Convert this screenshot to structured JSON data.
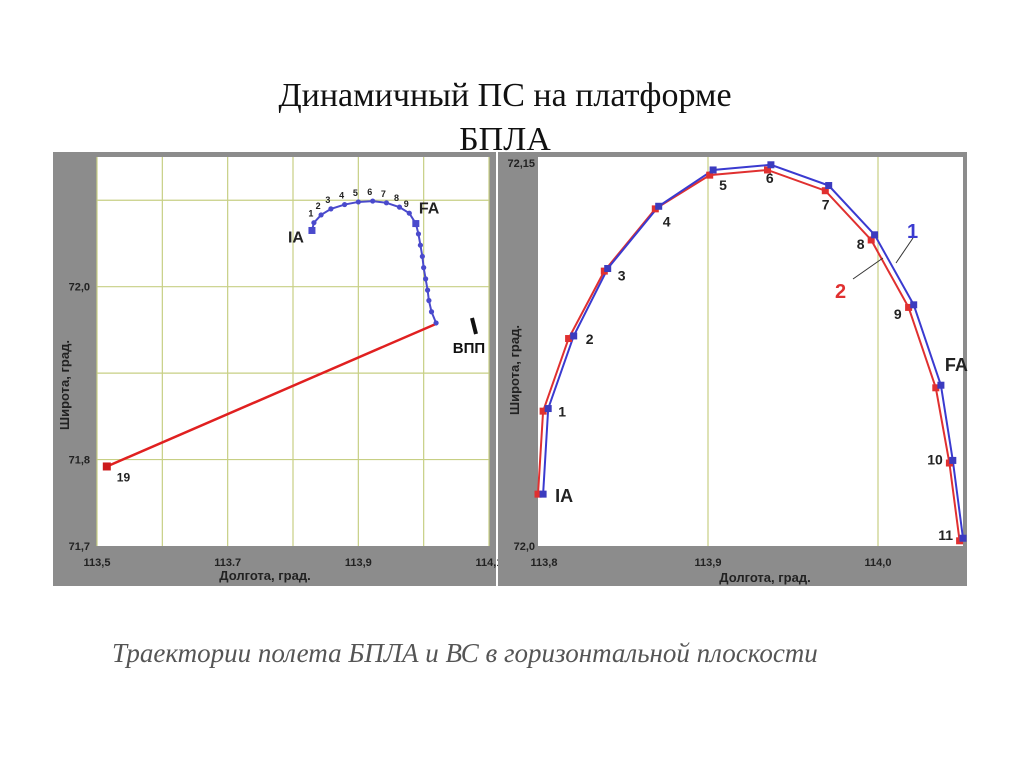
{
  "title": {
    "line1": "Динамичный ПС на платформе",
    "line2": "БПЛА"
  },
  "caption": "Траектории полета БПЛА и ВС в горизонтальной плоскости",
  "colors": {
    "frame": "#8c8c8c",
    "plot_bg": "#ffffff",
    "grid": "#c7cf84",
    "uav": "#4a4acc",
    "aircraft_line": "#e02020",
    "aircraft_marker": "#cc1a1a",
    "track1": "#3a3ad0",
    "track2": "#e03030",
    "marker_blue": "#3b3bbf",
    "runway": "#111111"
  },
  "chart_data": [
    {
      "type": "line",
      "xlabel": "Долгота, град.",
      "ylabel": "Широта, град.",
      "xlim": [
        113.5,
        114.1
      ],
      "ylim": [
        71.7,
        72.15
      ],
      "x_ticks": [
        {
          "value": 113.5,
          "label": "113,5"
        },
        {
          "value": 113.7,
          "label": "113.7"
        },
        {
          "value": 113.9,
          "label": "113,9"
        },
        {
          "value": 114.1,
          "label": "114,1"
        }
      ],
      "y_ticks": [
        {
          "value": 71.7,
          "label": "71,7"
        },
        {
          "value": 71.8,
          "label": "71,8"
        },
        {
          "value": 72.0,
          "label": "72,0"
        }
      ],
      "grid_x": [
        113.5,
        113.6,
        113.7,
        113.8,
        113.9,
        114.0,
        114.1
      ],
      "grid_y": [
        71.8,
        71.9,
        72.0,
        72.1
      ],
      "grid": true,
      "uav_track": {
        "points": [
          {
            "x": 113.829,
            "y": 72.065,
            "label": "IA"
          },
          {
            "x": 113.832,
            "y": 72.074,
            "label": "1"
          },
          {
            "x": 113.843,
            "y": 72.083,
            "label": "2"
          },
          {
            "x": 113.858,
            "y": 72.09,
            "label": "3"
          },
          {
            "x": 113.879,
            "y": 72.095,
            "label": "4"
          },
          {
            "x": 113.9,
            "y": 72.098,
            "label": "5"
          },
          {
            "x": 113.922,
            "y": 72.099,
            "label": "6"
          },
          {
            "x": 113.943,
            "y": 72.097,
            "label": "7"
          },
          {
            "x": 113.963,
            "y": 72.092,
            "label": "8"
          },
          {
            "x": 113.978,
            "y": 72.085,
            "label": "9"
          },
          {
            "x": 113.988,
            "y": 72.073,
            "label": "FA"
          },
          {
            "x": 113.992,
            "y": 72.061,
            "label": ""
          },
          {
            "x": 113.995,
            "y": 72.048,
            "label": ""
          },
          {
            "x": 113.998,
            "y": 72.035,
            "label": ""
          },
          {
            "x": 114.0,
            "y": 72.022,
            "label": ""
          },
          {
            "x": 114.003,
            "y": 72.009,
            "label": ""
          },
          {
            "x": 114.006,
            "y": 71.996,
            "label": ""
          },
          {
            "x": 114.008,
            "y": 71.984,
            "label": ""
          },
          {
            "x": 114.012,
            "y": 71.971,
            "label": ""
          },
          {
            "x": 114.019,
            "y": 71.958,
            "label": ""
          }
        ]
      },
      "aircraft_track": {
        "points": [
          {
            "x": 114.019,
            "y": 71.957,
            "label": ""
          },
          {
            "x": 113.515,
            "y": 71.792,
            "label": "19"
          }
        ]
      },
      "runway_label": "ВПП"
    },
    {
      "type": "line",
      "xlabel": "Долгота, град.",
      "ylabel": "Широта, град.",
      "xlim": [
        113.8,
        114.05
      ],
      "ylim": [
        72.0,
        72.15
      ],
      "x_ticks": [
        {
          "value": 113.8,
          "label": "113,8"
        },
        {
          "value": 113.9,
          "label": "113,9"
        },
        {
          "value": 114.0,
          "label": "114,0"
        }
      ],
      "y_ticks": [
        {
          "value": 72.0,
          "label": "72,0"
        },
        {
          "value": 72.15,
          "label": "72,15"
        }
      ],
      "grid_x": [
        113.9,
        114.0
      ],
      "grid_y": [],
      "grid": true,
      "series": [
        {
          "name": "1",
          "points": [
            {
              "x": 113.803,
              "y": 72.02,
              "label": "IA"
            },
            {
              "x": 113.806,
              "y": 72.053,
              "label": "1"
            },
            {
              "x": 113.821,
              "y": 72.081,
              "label": "2"
            },
            {
              "x": 113.841,
              "y": 72.107,
              "label": "3"
            },
            {
              "x": 113.871,
              "y": 72.131,
              "label": "4"
            },
            {
              "x": 113.903,
              "y": 72.145,
              "label": "5"
            },
            {
              "x": 113.937,
              "y": 72.147,
              "label": "6"
            },
            {
              "x": 113.971,
              "y": 72.139,
              "label": "7"
            },
            {
              "x": 113.998,
              "y": 72.12,
              "label": "8"
            },
            {
              "x": 114.021,
              "y": 72.093,
              "label": "9"
            },
            {
              "x": 114.037,
              "y": 72.062,
              "label": "FA"
            },
            {
              "x": 114.044,
              "y": 72.033,
              "label": "10"
            },
            {
              "x": 114.05,
              "y": 72.003,
              "label": "11"
            }
          ]
        },
        {
          "name": "2",
          "points": [
            {
              "x": 113.8,
              "y": 72.02,
              "label": ""
            },
            {
              "x": 113.803,
              "y": 72.052,
              "label": ""
            },
            {
              "x": 113.818,
              "y": 72.08,
              "label": ""
            },
            {
              "x": 113.839,
              "y": 72.106,
              "label": ""
            },
            {
              "x": 113.869,
              "y": 72.13,
              "label": ""
            },
            {
              "x": 113.901,
              "y": 72.143,
              "label": ""
            },
            {
              "x": 113.935,
              "y": 72.145,
              "label": ""
            },
            {
              "x": 113.969,
              "y": 72.137,
              "label": ""
            },
            {
              "x": 113.996,
              "y": 72.118,
              "label": ""
            },
            {
              "x": 114.018,
              "y": 72.092,
              "label": ""
            },
            {
              "x": 114.034,
              "y": 72.061,
              "label": ""
            },
            {
              "x": 114.042,
              "y": 72.032,
              "label": ""
            },
            {
              "x": 114.048,
              "y": 72.002,
              "label": ""
            }
          ]
        }
      ]
    }
  ]
}
